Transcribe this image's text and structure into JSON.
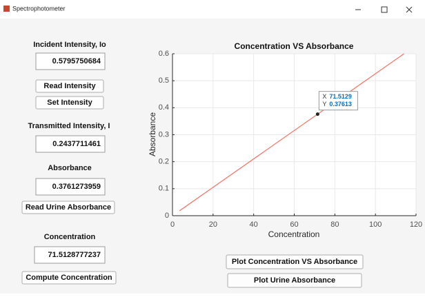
{
  "window": {
    "title": "Spectrophotometer"
  },
  "panel": {
    "incident_label": "Incident Intensity, Io",
    "incident_value": "0.5795750684",
    "read_intensity_button": "Read Intensity",
    "set_intensity_button": "Set Intensity",
    "transmitted_label": "Transmitted Intensity, I",
    "transmitted_value": "0.2437711461",
    "absorbance_label": "Absorbance",
    "absorbance_value": "0.3761273959",
    "read_urine_button": "Read Urine Absorbance",
    "concentration_label": "Concentration",
    "concentration_value": "71.5128777237",
    "compute_button": "Compute Concentration"
  },
  "plot_buttons": [
    "Plot Concentration VS Absorbance",
    "Plot Urine Absorbance"
  ],
  "chart_data": {
    "type": "line",
    "title": "Concentration VS Absorbance",
    "xlabel": "Concentration",
    "ylabel": "Absorbance",
    "x": [
      3.5,
      114.07
    ],
    "values": [
      0.0184,
      0.6
    ],
    "color": "#f4796b",
    "xlim": [
      0,
      120
    ],
    "xticks": [
      0,
      20,
      40,
      60,
      80,
      100,
      120
    ],
    "ylim": [
      0,
      0.6
    ],
    "yticks": [
      0,
      0.1,
      0.2,
      0.3,
      0.4,
      0.5,
      0.6
    ],
    "grid": true,
    "datatip": {
      "x_label": "X",
      "x": 71.5129,
      "y_label": "Y",
      "y": 0.37613
    }
  }
}
